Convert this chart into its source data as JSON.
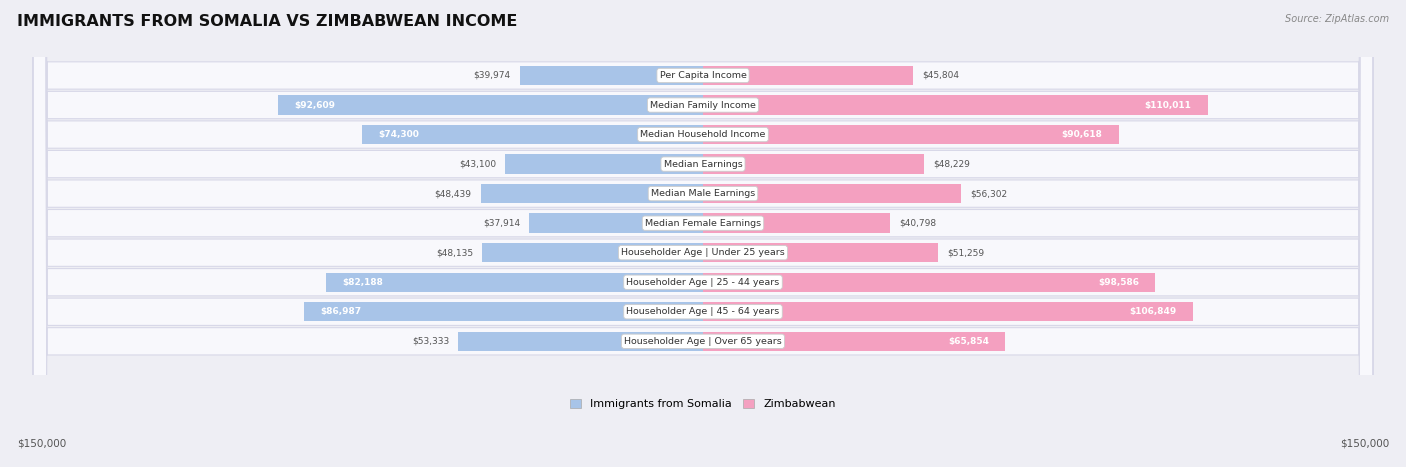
{
  "title": "IMMIGRANTS FROM SOMALIA VS ZIMBABWEAN INCOME",
  "source": "Source: ZipAtlas.com",
  "categories": [
    "Per Capita Income",
    "Median Family Income",
    "Median Household Income",
    "Median Earnings",
    "Median Male Earnings",
    "Median Female Earnings",
    "Householder Age | Under 25 years",
    "Householder Age | 25 - 44 years",
    "Householder Age | 45 - 64 years",
    "Householder Age | Over 65 years"
  ],
  "somalia_values": [
    39974,
    92609,
    74300,
    43100,
    48439,
    37914,
    48135,
    82188,
    86987,
    53333
  ],
  "zimbabwe_values": [
    45804,
    110011,
    90618,
    48229,
    56302,
    40798,
    51259,
    98586,
    106849,
    65854
  ],
  "somalia_labels": [
    "$39,974",
    "$92,609",
    "$74,300",
    "$43,100",
    "$48,439",
    "$37,914",
    "$48,135",
    "$82,188",
    "$86,987",
    "$53,333"
  ],
  "zimbabwe_labels": [
    "$45,804",
    "$110,011",
    "$90,618",
    "$48,229",
    "$56,302",
    "$40,798",
    "$51,259",
    "$98,586",
    "$106,849",
    "$65,854"
  ],
  "somalia_color": "#a8c4e8",
  "zimbabwe_color": "#f4a0c0",
  "max_value": 150000,
  "legend_somalia": "Immigrants from Somalia",
  "legend_zimbabwe": "Zimbabwean",
  "background_color": "#eeeef4",
  "row_bg_color": "#f8f8fc",
  "xlabel_left": "$150,000",
  "xlabel_right": "$150,000",
  "inside_label_threshold": 60000
}
